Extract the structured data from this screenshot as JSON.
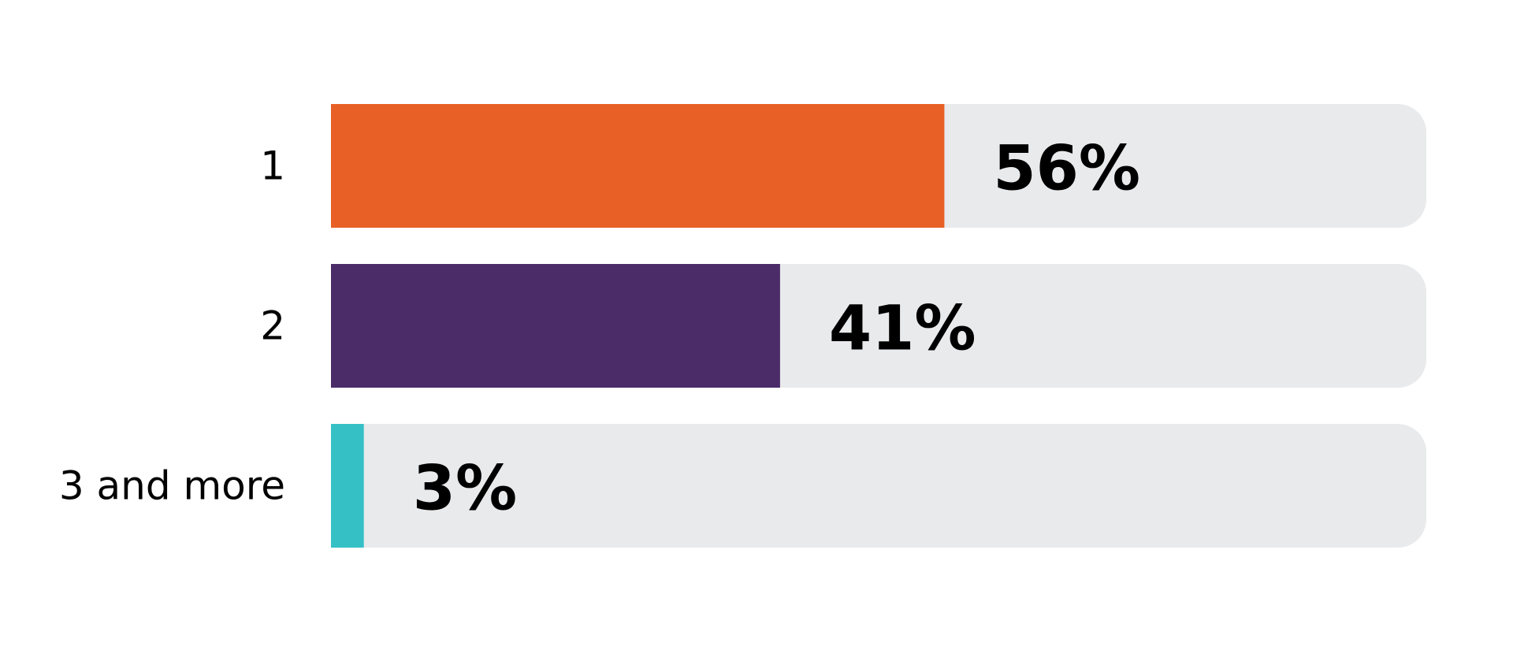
{
  "chart_data": {
    "type": "bar",
    "orientation": "horizontal",
    "categories": [
      "1",
      "2",
      "3 and more"
    ],
    "values": [
      56,
      41,
      3
    ],
    "value_labels": [
      "56%",
      "41%",
      "3%"
    ],
    "xlim": [
      0,
      100
    ],
    "grid": false,
    "legend": "none",
    "colors": {
      "bars": [
        "#E86026",
        "#4B2C69",
        "#35C0C5"
      ],
      "track": "#E9EAEC",
      "text": "#000000"
    }
  }
}
